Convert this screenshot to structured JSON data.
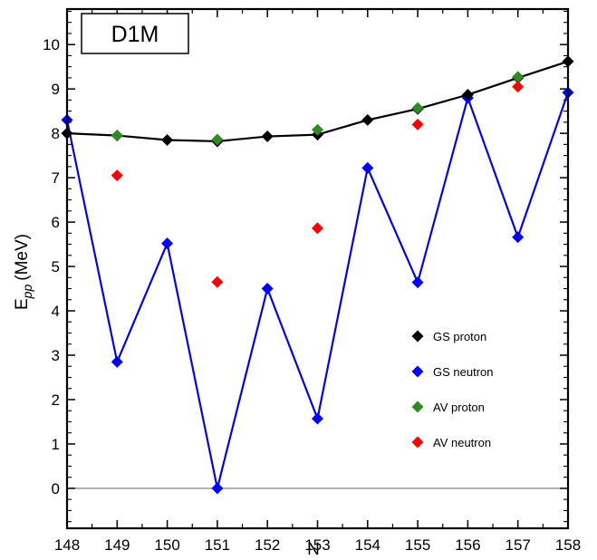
{
  "chart_data": {
    "type": "line",
    "panel_label": "D1M",
    "xlabel": "N",
    "ylabel": {
      "main": "E",
      "sub": "pp",
      "unit": "(MeV)"
    },
    "xlim": [
      148,
      158
    ],
    "ylim": [
      -0.9,
      10.8
    ],
    "x_ticks": [
      148,
      149,
      150,
      151,
      152,
      153,
      154,
      155,
      156,
      157,
      158
    ],
    "y_ticks": [
      0,
      1,
      2,
      3,
      4,
      5,
      6,
      7,
      8,
      9,
      10
    ],
    "reference_line_y": 0,
    "grid": false,
    "legend_position": "right",
    "series": [
      {
        "name": "GS proton",
        "color": "#000000",
        "line": true,
        "x": [
          148,
          149,
          150,
          151,
          152,
          153,
          154,
          155,
          156,
          157,
          158
        ],
        "y": [
          8.0,
          7.95,
          7.85,
          7.82,
          7.93,
          7.97,
          8.3,
          8.55,
          8.87,
          9.25,
          9.62
        ]
      },
      {
        "name": "GS neutron",
        "color": "#0000ff",
        "line": true,
        "x": [
          148,
          149,
          150,
          151,
          152,
          153,
          154,
          155,
          156,
          157,
          158
        ],
        "y": [
          8.3,
          2.85,
          5.52,
          0.0,
          4.5,
          1.57,
          7.22,
          4.64,
          8.8,
          5.66,
          8.92
        ]
      },
      {
        "name": "AV proton",
        "color": "#2e8b22",
        "line": false,
        "x": [
          149,
          151,
          153,
          155,
          157
        ],
        "y": [
          7.95,
          7.86,
          8.08,
          8.57,
          9.27
        ]
      },
      {
        "name": "AV neutron",
        "color": "#ff0000",
        "line": false,
        "x": [
          149,
          151,
          153,
          155,
          157
        ],
        "y": [
          7.05,
          4.65,
          5.86,
          8.2,
          9.05
        ]
      }
    ]
  }
}
